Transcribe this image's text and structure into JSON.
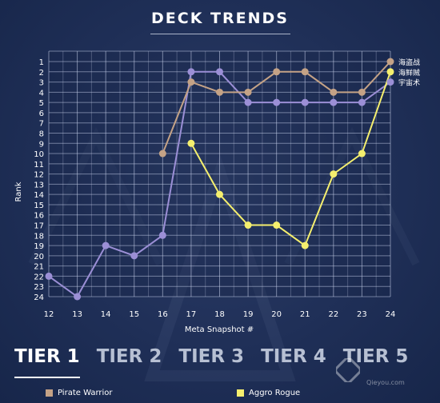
{
  "header": {
    "title": "DECK TRENDS"
  },
  "tiers": [
    {
      "label": "TIER 1",
      "active": true
    },
    {
      "label": "TIER 2",
      "active": false
    },
    {
      "label": "TIER 3",
      "active": false
    },
    {
      "label": "TIER 4",
      "active": false
    },
    {
      "label": "TIER 5",
      "active": false
    }
  ],
  "legend": [
    {
      "label": "Pirate Warrior",
      "color": "#c4a286"
    },
    {
      "label": "Aggro Rogue",
      "color": "#f5ef6e"
    }
  ],
  "watermark": {
    "text": "",
    "sub": "Qieyou.com"
  },
  "chart_data": {
    "type": "line",
    "title": "",
    "xlabel": "Meta Snapshot #",
    "ylabel": "Rank",
    "x_ticks": [
      12,
      13,
      14,
      15,
      16,
      17,
      18,
      19,
      20,
      21,
      22,
      23,
      24
    ],
    "y_ticks": [
      1,
      2,
      3,
      4,
      5,
      6,
      7,
      8,
      9,
      10,
      11,
      12,
      13,
      14,
      15,
      16,
      17,
      18,
      19,
      20,
      21,
      22,
      23,
      24
    ],
    "xlim": [
      12,
      24
    ],
    "ylim": [
      24,
      1
    ],
    "y_inverted": true,
    "grid": true,
    "series": [
      {
        "name": "海盗战",
        "color": "#c4a286",
        "points": [
          [
            16,
            10
          ],
          [
            17,
            3
          ],
          [
            18,
            4
          ],
          [
            19,
            4
          ],
          [
            20,
            2
          ],
          [
            21,
            2
          ],
          [
            22,
            4
          ],
          [
            23,
            4
          ],
          [
            24,
            1
          ]
        ]
      },
      {
        "name": "海鲜贼",
        "color": "#f5ef6e",
        "points": [
          [
            17,
            9
          ],
          [
            18,
            14
          ],
          [
            19,
            17
          ],
          [
            20,
            17
          ],
          [
            21,
            19
          ],
          [
            22,
            12
          ],
          [
            23,
            10
          ],
          [
            24,
            2
          ]
        ]
      },
      {
        "name": "宇宙术",
        "color": "#9b8fd6",
        "points": [
          [
            12,
            22
          ],
          [
            13,
            24
          ],
          [
            14,
            19
          ],
          [
            15,
            20
          ],
          [
            16,
            18
          ],
          [
            17,
            2
          ],
          [
            18,
            2
          ],
          [
            19,
            5
          ],
          [
            20,
            5
          ],
          [
            21,
            5
          ],
          [
            22,
            5
          ],
          [
            23,
            5
          ],
          [
            24,
            3
          ]
        ]
      }
    ]
  }
}
